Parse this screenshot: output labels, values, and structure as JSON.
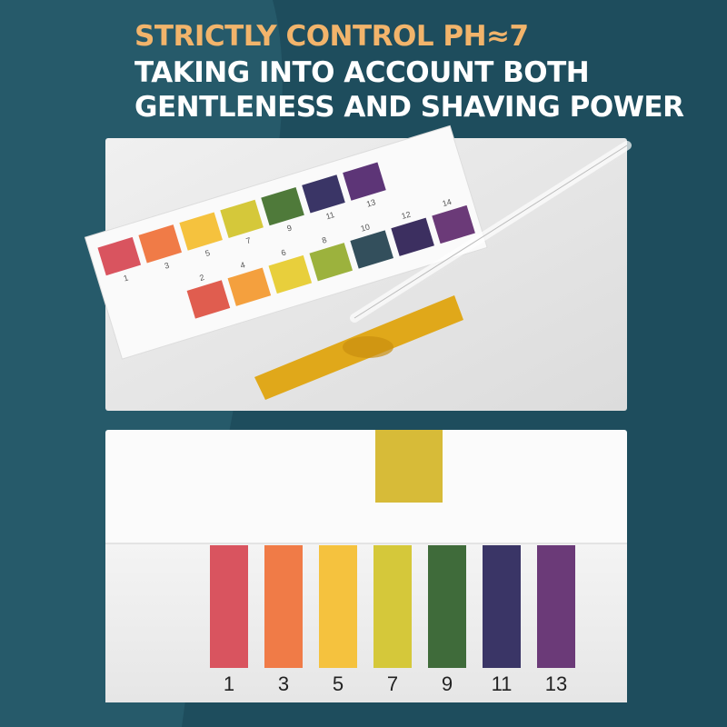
{
  "header": {
    "lines": [
      "STRICTLY CONTROL PH≈7",
      "TAKING INTO ACCOUNT BOTH",
      "GENTLENESS AND SHAVING POWER"
    ]
  },
  "top_photo": {
    "card_labels_odd": [
      "1",
      "3",
      "5",
      "7",
      "9",
      "11",
      "13"
    ],
    "card_labels_even": [
      "2",
      "4",
      "6",
      "8",
      "10",
      "12",
      "14"
    ]
  },
  "bottom_photo": {
    "scale_labels": [
      "1",
      "3",
      "5",
      "7",
      "9",
      "11",
      "13"
    ]
  }
}
